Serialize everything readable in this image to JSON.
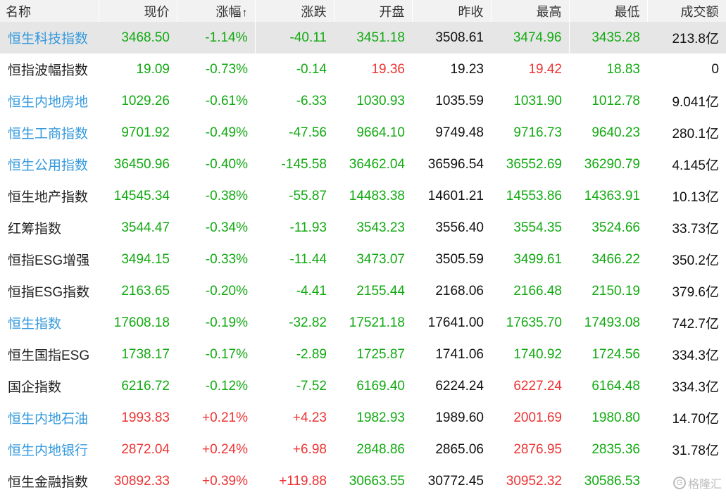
{
  "headers": {
    "name": "名称",
    "price": "现价",
    "change_pct": "涨幅",
    "change": "涨跌",
    "open": "开盘",
    "prev_close": "昨收",
    "high": "最高",
    "low": "最低",
    "turnover": "成交额"
  },
  "sort_indicator": "↑",
  "colors": {
    "up": "#ee3333",
    "down": "#11aa11",
    "link": "#3399dd",
    "header_bg": "#f2f2f2",
    "selected_bg": "#e6e6e6"
  },
  "rows": [
    {
      "name": "恒生科技指数",
      "link": true,
      "price": "3468.50",
      "pct": "-1.14%",
      "chg": "-40.11",
      "open": "3451.18",
      "prev": "3508.61",
      "high": "3474.96",
      "low": "3435.28",
      "amt": "213.8亿",
      "c": {
        "price": "down",
        "pct": "down",
        "chg": "down",
        "open": "down",
        "high": "down",
        "low": "down"
      }
    },
    {
      "name": "恒指波幅指数",
      "link": false,
      "price": "19.09",
      "pct": "-0.73%",
      "chg": "-0.14",
      "open": "19.36",
      "prev": "19.23",
      "high": "19.42",
      "low": "18.83",
      "amt": "0",
      "c": {
        "price": "down",
        "pct": "down",
        "chg": "down",
        "open": "up",
        "high": "up",
        "low": "down"
      }
    },
    {
      "name": "恒生内地房地",
      "link": true,
      "price": "1029.26",
      "pct": "-0.61%",
      "chg": "-6.33",
      "open": "1030.93",
      "prev": "1035.59",
      "high": "1031.90",
      "low": "1012.78",
      "amt": "9.041亿",
      "c": {
        "price": "down",
        "pct": "down",
        "chg": "down",
        "open": "down",
        "high": "down",
        "low": "down"
      }
    },
    {
      "name": "恒生工商指数",
      "link": true,
      "price": "9701.92",
      "pct": "-0.49%",
      "chg": "-47.56",
      "open": "9664.10",
      "prev": "9749.48",
      "high": "9716.73",
      "low": "9640.23",
      "amt": "280.1亿",
      "c": {
        "price": "down",
        "pct": "down",
        "chg": "down",
        "open": "down",
        "high": "down",
        "low": "down"
      }
    },
    {
      "name": "恒生公用指数",
      "link": true,
      "price": "36450.96",
      "pct": "-0.40%",
      "chg": "-145.58",
      "open": "36462.04",
      "prev": "36596.54",
      "high": "36552.69",
      "low": "36290.79",
      "amt": "4.145亿",
      "c": {
        "price": "down",
        "pct": "down",
        "chg": "down",
        "open": "down",
        "high": "down",
        "low": "down"
      }
    },
    {
      "name": "恒生地产指数",
      "link": false,
      "price": "14545.34",
      "pct": "-0.38%",
      "chg": "-55.87",
      "open": "14483.38",
      "prev": "14601.21",
      "high": "14553.86",
      "low": "14363.91",
      "amt": "10.13亿",
      "c": {
        "price": "down",
        "pct": "down",
        "chg": "down",
        "open": "down",
        "high": "down",
        "low": "down"
      }
    },
    {
      "name": "红筹指数",
      "link": false,
      "price": "3544.47",
      "pct": "-0.34%",
      "chg": "-11.93",
      "open": "3543.23",
      "prev": "3556.40",
      "high": "3554.35",
      "low": "3524.66",
      "amt": "33.73亿",
      "c": {
        "price": "down",
        "pct": "down",
        "chg": "down",
        "open": "down",
        "high": "down",
        "low": "down"
      }
    },
    {
      "name": "恒指ESG增强",
      "link": false,
      "price": "3494.15",
      "pct": "-0.33%",
      "chg": "-11.44",
      "open": "3473.07",
      "prev": "3505.59",
      "high": "3499.61",
      "low": "3466.22",
      "amt": "350.2亿",
      "c": {
        "price": "down",
        "pct": "down",
        "chg": "down",
        "open": "down",
        "high": "down",
        "low": "down"
      }
    },
    {
      "name": "恒指ESG指数",
      "link": false,
      "price": "2163.65",
      "pct": "-0.20%",
      "chg": "-4.41",
      "open": "2155.44",
      "prev": "2168.06",
      "high": "2166.48",
      "low": "2150.19",
      "amt": "379.6亿",
      "c": {
        "price": "down",
        "pct": "down",
        "chg": "down",
        "open": "down",
        "high": "down",
        "low": "down"
      }
    },
    {
      "name": "恒生指数",
      "link": true,
      "price": "17608.18",
      "pct": "-0.19%",
      "chg": "-32.82",
      "open": "17521.18",
      "prev": "17641.00",
      "high": "17635.70",
      "low": "17493.08",
      "amt": "742.7亿",
      "c": {
        "price": "down",
        "pct": "down",
        "chg": "down",
        "open": "down",
        "high": "down",
        "low": "down"
      }
    },
    {
      "name": "恒生国指ESG",
      "link": false,
      "price": "1738.17",
      "pct": "-0.17%",
      "chg": "-2.89",
      "open": "1725.87",
      "prev": "1741.06",
      "high": "1740.92",
      "low": "1724.56",
      "amt": "334.3亿",
      "c": {
        "price": "down",
        "pct": "down",
        "chg": "down",
        "open": "down",
        "high": "down",
        "low": "down"
      }
    },
    {
      "name": "国企指数",
      "link": false,
      "price": "6216.72",
      "pct": "-0.12%",
      "chg": "-7.52",
      "open": "6169.40",
      "prev": "6224.24",
      "high": "6227.24",
      "low": "6164.48",
      "amt": "334.3亿",
      "c": {
        "price": "down",
        "pct": "down",
        "chg": "down",
        "open": "down",
        "high": "up",
        "low": "down"
      }
    },
    {
      "name": "恒生内地石油",
      "link": true,
      "price": "1993.83",
      "pct": "+0.21%",
      "chg": "+4.23",
      "open": "1982.93",
      "prev": "1989.60",
      "high": "2001.69",
      "low": "1980.80",
      "amt": "14.70亿",
      "c": {
        "price": "up",
        "pct": "up",
        "chg": "up",
        "open": "down",
        "high": "up",
        "low": "down"
      }
    },
    {
      "name": "恒生内地银行",
      "link": true,
      "price": "2872.04",
      "pct": "+0.24%",
      "chg": "+6.98",
      "open": "2848.86",
      "prev": "2865.06",
      "high": "2876.95",
      "low": "2835.36",
      "amt": "31.78亿",
      "c": {
        "price": "up",
        "pct": "up",
        "chg": "up",
        "open": "down",
        "high": "up",
        "low": "down"
      }
    },
    {
      "name": "恒生金融指数",
      "link": false,
      "price": "30892.33",
      "pct": "+0.39%",
      "chg": "+119.88",
      "open": "30663.55",
      "prev": "30772.45",
      "high": "30952.32",
      "low": "30586.53",
      "amt": "",
      "c": {
        "price": "up",
        "pct": "up",
        "chg": "up",
        "open": "down",
        "high": "up",
        "low": "down"
      }
    }
  ],
  "watermark": {
    "logo": "G",
    "text": "格隆汇"
  }
}
